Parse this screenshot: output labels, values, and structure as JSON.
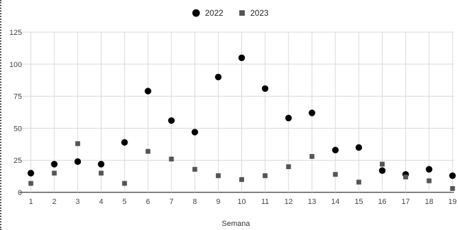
{
  "chart_data": {
    "type": "scatter",
    "title": "",
    "xlabel": "Semana",
    "ylabel": "",
    "ylim": [
      0,
      125
    ],
    "yticks": [
      0,
      25,
      50,
      75,
      100,
      125
    ],
    "xticks": [
      1,
      2,
      3,
      4,
      5,
      6,
      7,
      8,
      9,
      10,
      11,
      12,
      13,
      14,
      15,
      16,
      17,
      18,
      19
    ],
    "grid": true,
    "legend": "top-center",
    "series": [
      {
        "name": "2022",
        "marker": "circle",
        "color": "#000000",
        "x": [
          1,
          2,
          3,
          4,
          5,
          6,
          7,
          8,
          9,
          10,
          11,
          12,
          13,
          14,
          15,
          16,
          17,
          18,
          19
        ],
        "y": [
          15,
          22,
          24,
          22,
          39,
          79,
          56,
          47,
          90,
          105,
          81,
          58,
          62,
          33,
          35,
          17,
          14,
          18,
          13
        ]
      },
      {
        "name": "2023",
        "marker": "square",
        "color": "#555555",
        "x": [
          1,
          2,
          3,
          4,
          5,
          6,
          7,
          8,
          9,
          10,
          11,
          12,
          13,
          14,
          15,
          16,
          17,
          18,
          19
        ],
        "y": [
          7,
          15,
          38,
          15,
          7,
          32,
          26,
          18,
          13,
          10,
          13,
          20,
          28,
          14,
          8,
          22,
          12,
          9,
          3
        ]
      }
    ]
  }
}
